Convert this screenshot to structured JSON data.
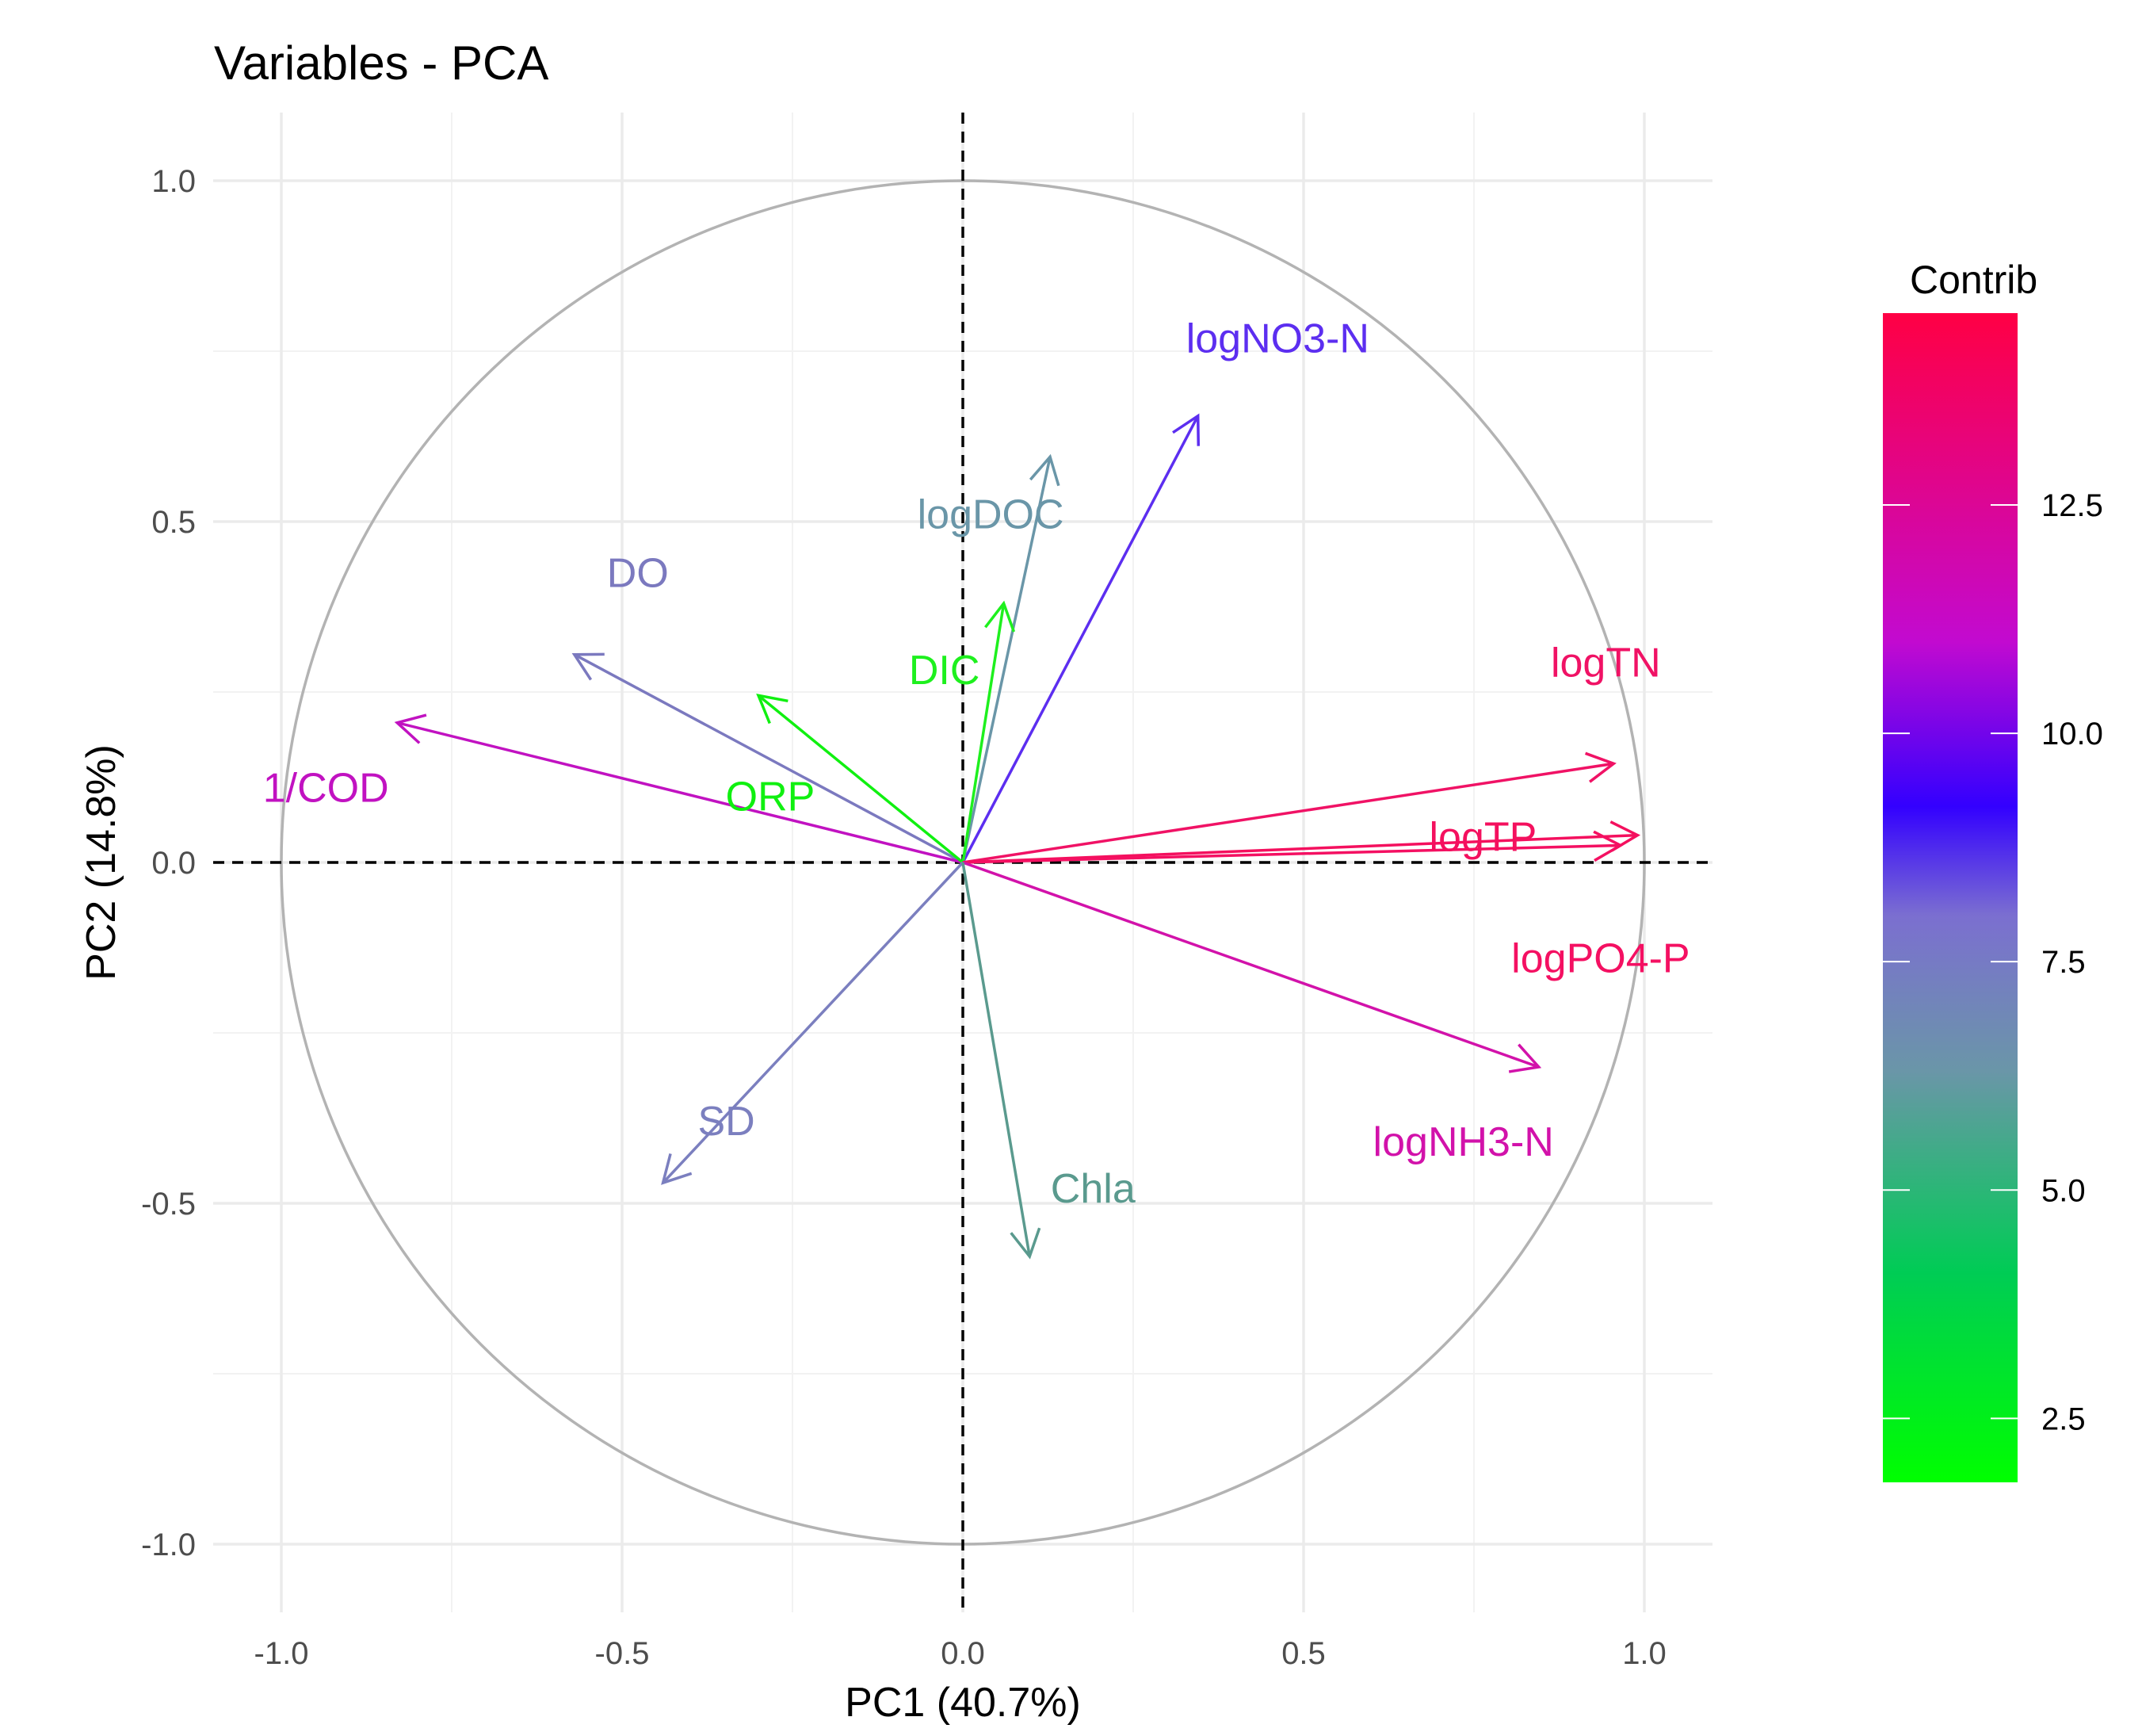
{
  "chart_data": {
    "type": "pca-variable-correlation-circle",
    "title": "Variables - PCA",
    "xlabel": "PC1 (40.7%)",
    "ylabel": "PC2 (14.8%)",
    "xlim": [
      -1.1,
      1.1
    ],
    "ylim": [
      -1.1,
      1.1
    ],
    "x_ticks": [
      -1.0,
      -0.5,
      0.0,
      0.5,
      1.0
    ],
    "y_ticks": [
      -1.0,
      -0.5,
      0.0,
      0.5,
      1.0
    ],
    "x_tick_labels": [
      "-1.0",
      "-0.5",
      "0.0",
      "0.5",
      "1.0"
    ],
    "y_tick_labels": [
      "-1.0",
      "-0.5",
      "0.0",
      "0.5",
      "1.0"
    ],
    "grid": true,
    "unit_circle": true,
    "reference_lines": [
      "x=0",
      "y=0"
    ],
    "variables": [
      {
        "name": "logNO3-N",
        "x": 0.345,
        "y": 0.655,
        "contrib": 9.3,
        "color": "#5c2ef0"
      },
      {
        "name": "logDOC",
        "x": 0.128,
        "y": 0.595,
        "contrib": 5.8,
        "color": "#6a96a8"
      },
      {
        "name": "DO",
        "x": -0.57,
        "y": 0.305,
        "contrib": 7.0,
        "color": "#7b79bf"
      },
      {
        "name": "DIC",
        "x": 0.06,
        "y": 0.38,
        "contrib": 2.3,
        "color": "#1ef01e"
      },
      {
        "name": "1/COD",
        "x": -0.83,
        "y": 0.205,
        "contrib": 11.0,
        "color": "#c112c1"
      },
      {
        "name": "ORP",
        "x": -0.3,
        "y": 0.245,
        "contrib": 2.2,
        "color": "#10f010"
      },
      {
        "name": "logTN",
        "x": 0.955,
        "y": 0.145,
        "contrib": 14.0,
        "color": "#f01265"
      },
      {
        "name": "logTP",
        "x": 0.99,
        "y": 0.04,
        "contrib": 14.3,
        "color": "#f4105e"
      },
      {
        "name": "logPO4-P",
        "x": 0.965,
        "y": 0.025,
        "contrib": 14.1,
        "color": "#f41062"
      },
      {
        "name": "logNH3-N",
        "x": 0.845,
        "y": -0.3,
        "contrib": 11.8,
        "color": "#d212aa"
      },
      {
        "name": "SD",
        "x": -0.44,
        "y": -0.47,
        "contrib": 7.2,
        "color": "#7b7fbf"
      },
      {
        "name": "Chla",
        "x": 0.098,
        "y": -0.578,
        "contrib": 5.2,
        "color": "#5a9a8e"
      }
    ],
    "legend": {
      "title": "Contrib",
      "position": "right",
      "range": [
        1.8,
        14.6
      ],
      "ticks": [
        2.5,
        5.0,
        7.5,
        10.0,
        12.5
      ],
      "tick_labels": [
        "2.5",
        "5.0",
        "7.5",
        "10.0",
        "12.5"
      ],
      "gradient": [
        {
          "value": 1.8,
          "color": "#00ff00"
        },
        {
          "value": 4.1,
          "color": "#00cc55"
        },
        {
          "value": 6.3,
          "color": "#6a96a8"
        },
        {
          "value": 8.0,
          "color": "#7b6fd0"
        },
        {
          "value": 9.2,
          "color": "#3300ff"
        },
        {
          "value": 11.0,
          "color": "#c20ad0"
        },
        {
          "value": 14.6,
          "color": "#ff0044"
        }
      ]
    }
  }
}
